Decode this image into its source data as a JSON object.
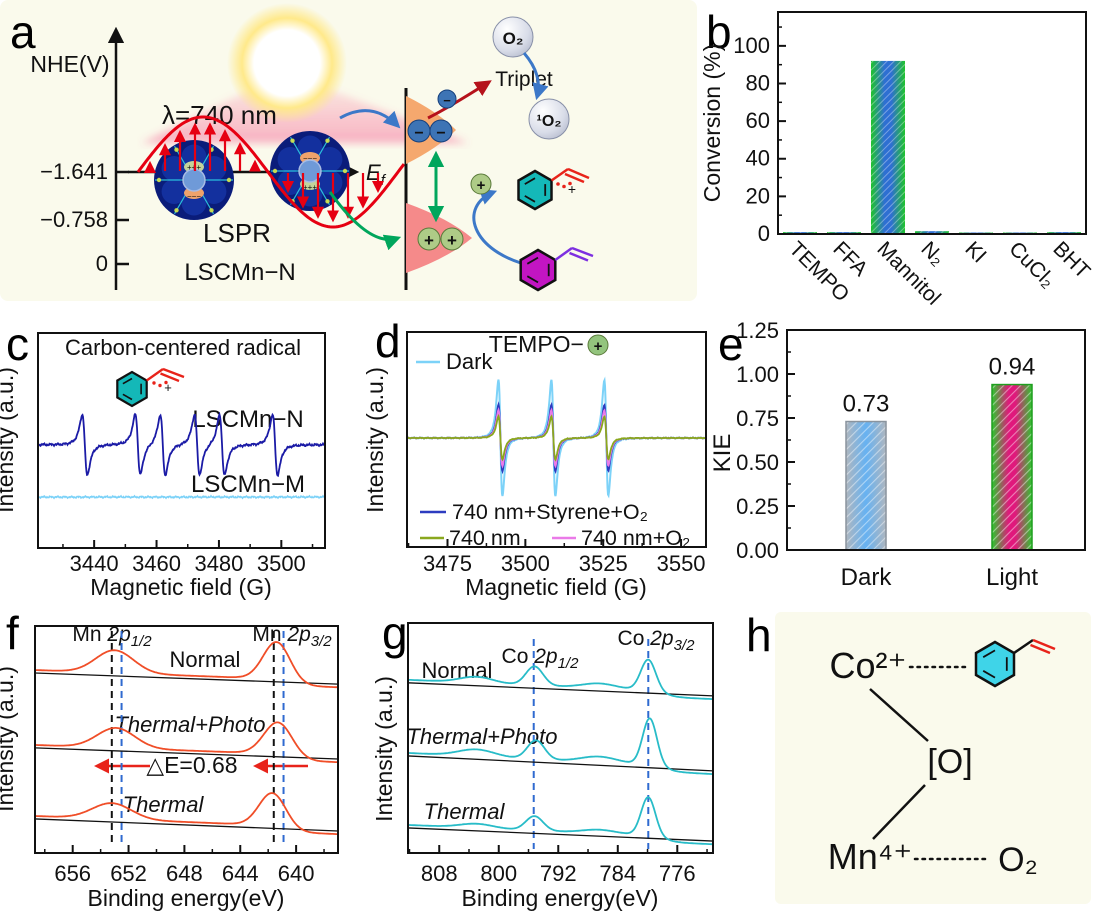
{
  "panels": {
    "a": {
      "letter": "a",
      "y_axis_label": "NHE(V)",
      "y_tick_labels": [
        "−1.641",
        "−0.758",
        "0"
      ],
      "wavelength_label": "λ=740 nm",
      "lspr_label": "LSPR",
      "material_label": "LSCMn−N",
      "fermi_symbol": "E",
      "fermi_sub": "f",
      "oxygen_label": "O₂",
      "triplet_label": "Triplet",
      "singlet_oxygen_label": "¹O₂",
      "electron_symbol": "−",
      "hole_symbol": "+",
      "charge_plus": "+++",
      "charge_minus": "−−−"
    },
    "b": {
      "letter": "b"
    },
    "c": {
      "letter": "c"
    },
    "d": {
      "letter": "d"
    },
    "e": {
      "letter": "e"
    },
    "f": {
      "letter": "f"
    },
    "g": {
      "letter": "g"
    },
    "h": {
      "letter": "h",
      "cobalt_label": "Co²⁺",
      "oxo_label": "[O]",
      "manganese_label": "Mn⁴⁺",
      "oxygen_label": "O₂"
    }
  },
  "colors": {
    "panel_background": "#fafaec",
    "wave_red": "#e60012",
    "magenta_accent": "#ef1285",
    "blue_arrow": "#3c78c8",
    "green_arrow": "#00a65c",
    "dark_red_arrow": "#b5121b",
    "teal_molecule": "#14b8b8",
    "magenta_molecule": "#c215c2",
    "cyan_molecule": "#3fd4e8"
  },
  "chart_data": [
    {
      "panel": "b",
      "type": "bar",
      "categories": [
        "TEMPO",
        "FFA",
        "Mannitol",
        "N₂",
        "KI",
        "CuCl₂",
        "BHT"
      ],
      "values": [
        1,
        1,
        92,
        1.5,
        0.8,
        0.8,
        1
      ],
      "ylabel": "Conversion (%)",
      "yticks": [
        0,
        20,
        40,
        60,
        80,
        100
      ],
      "ylim": [
        0,
        118
      ],
      "bar_colors": {
        "edge": "#1fc32b",
        "center": "#2e6fd2"
      }
    },
    {
      "panel": "c",
      "type": "line",
      "title": "Carbon-centered radical",
      "xlabel": "Magnetic field (G)",
      "ylabel": "Intensity (a.u.)",
      "xticks": [
        3440,
        3460,
        3480,
        3500
      ],
      "xlim": [
        3422,
        3514
      ],
      "series": [
        {
          "name": "LSCMn−N",
          "color": "#1b1ba6",
          "centers": [
            3437,
            3454,
            3462,
            3473,
            3481,
            3498
          ],
          "width": 1.4,
          "amp": 0.14,
          "baseline": 0.52,
          "noise": 1.1
        },
        {
          "name": "LSCMn−M",
          "color": "#7cd2f8",
          "centers": [],
          "width": 1,
          "amp": 0,
          "baseline": 0.763,
          "noise": 0.9
        }
      ]
    },
    {
      "panel": "d",
      "type": "line",
      "title": "TEMPO−",
      "title_suffix_symbol": "+",
      "xlabel": "Magnetic field (G)",
      "ylabel": "Intensity (a.u.)",
      "xticks": [
        3475,
        3500,
        3525,
        3550
      ],
      "xlim": [
        3462,
        3558
      ],
      "series": [
        {
          "name": "Dark",
          "color": "#7cd2f8",
          "centers": [
            3492,
            3509,
            3526
          ],
          "width": 1.1,
          "amp": 0.27,
          "baseline": 0.493,
          "noise": 0.5
        },
        {
          "name": "740 nm+Styrene+O₂",
          "color": "#2d3cc0",
          "centers": [
            3492,
            3509,
            3526
          ],
          "width": 1.1,
          "amp": 0.155,
          "baseline": 0.493,
          "noise": 0.4
        },
        {
          "name": "740 nm",
          "color": "#8aa81e",
          "centers": [
            3492,
            3509,
            3526
          ],
          "width": 1.1,
          "amp": 0.1,
          "baseline": 0.493,
          "noise": 0.4
        },
        {
          "name": "740 nm+O₂",
          "color": "#ea7ae8",
          "centers": [
            3492,
            3509,
            3526
          ],
          "width": 1.1,
          "amp": 0.13,
          "baseline": 0.493,
          "noise": 0.4
        }
      ]
    },
    {
      "panel": "e",
      "type": "bar",
      "categories": [
        "Dark",
        "Light"
      ],
      "values": [
        0.73,
        0.94
      ],
      "value_labels": [
        "0.73",
        "0.94"
      ],
      "ylabel": "KIE",
      "yticks": [
        0,
        0.25,
        0.5,
        0.75,
        1.0,
        1.25
      ],
      "ylim": [
        0,
        1.25
      ],
      "bar_colors": [
        {
          "edge": "#aeb6bf",
          "center": "#66b2f2"
        },
        {
          "edge": "#2ec52e",
          "center": "#e0187c"
        }
      ]
    },
    {
      "panel": "f",
      "type": "line",
      "xlabel": "Binding energy(eV)",
      "ylabel": "Intensity (a.u.)",
      "xticks": [
        656,
        652,
        648,
        644,
        640
      ],
      "xlim": [
        658.7,
        637.0
      ],
      "annotation": "△E=0.68",
      "peak_labels": [
        {
          "element": "Mn ",
          "orbital": "2p",
          "sub": "1/2"
        },
        {
          "element": "Mn ",
          "orbital": "2p",
          "sub": "3/2"
        }
      ],
      "dashed_black": [
        653.2,
        641.6
      ],
      "dashed_blue": [
        652.5,
        640.9
      ],
      "series": [
        {
          "name": "Normal",
          "color": "#f04e28",
          "baseline": [
            0.207,
            0.256
          ],
          "peaks": [
            {
              "c": 653.0,
              "a": 0.1,
              "w": 1.35
            },
            {
              "c": 641.4,
              "a": 0.165,
              "w": 0.95
            }
          ]
        },
        {
          "name": "Thermal+Photo",
          "color": "#f04e28",
          "baseline": [
            0.537,
            0.586
          ],
          "peaks": [
            {
              "c": 652.9,
              "a": 0.088,
              "w": 1.35
            },
            {
              "c": 641.3,
              "a": 0.141,
              "w": 1.0
            }
          ]
        },
        {
          "name": "Thermal",
          "color": "#f04e28",
          "baseline": [
            0.85,
            0.903
          ],
          "peaks": [
            {
              "c": 653.2,
              "a": 0.07,
              "w": 1.4
            },
            {
              "c": 641.7,
              "a": 0.145,
              "w": 0.95
            }
          ]
        }
      ]
    },
    {
      "panel": "g",
      "type": "line",
      "xlabel": "Binding energy(eV)",
      "ylabel": "Intensity (a.u.)",
      "xticks": [
        808,
        800,
        792,
        784,
        776
      ],
      "xlim": [
        812.2,
        771.2
      ],
      "peak_labels": [
        {
          "element": "Co ",
          "orbital": "2p",
          "sub": "1/2"
        },
        {
          "element": "Co ",
          "orbital": "2p",
          "sub": "3/2"
        }
      ],
      "dashed_blue": [
        795.3,
        779.9
      ],
      "series": [
        {
          "name": "Normal",
          "color": "#28bcc8",
          "baseline": [
            0.26,
            0.317
          ],
          "peaks": [
            {
              "c": 803,
              "a": 0.026,
              "w": 2.2
            },
            {
              "c": 795.2,
              "a": 0.082,
              "w": 1.15
            },
            {
              "c": 786.5,
              "a": 0.02,
              "w": 2.2
            },
            {
              "c": 779.9,
              "a": 0.135,
              "w": 1.0
            }
          ]
        },
        {
          "name": "Thermal+Photo",
          "color": "#28bcc8",
          "baseline": [
            0.578,
            0.643
          ],
          "peaks": [
            {
              "c": 803,
              "a": 0.03,
              "w": 2.4
            },
            {
              "c": 795.0,
              "a": 0.082,
              "w": 1.15
            },
            {
              "c": 786.5,
              "a": 0.025,
              "w": 2.4
            },
            {
              "c": 779.7,
              "a": 0.204,
              "w": 0.95
            }
          ]
        },
        {
          "name": "Thermal",
          "color": "#28bcc8",
          "baseline": [
            0.891,
            0.948
          ],
          "peaks": [
            {
              "c": 803,
              "a": 0.018,
              "w": 2.2
            },
            {
              "c": 795.2,
              "a": 0.062,
              "w": 1.15
            },
            {
              "c": 786.5,
              "a": 0.015,
              "w": 2.2
            },
            {
              "c": 779.9,
              "a": 0.168,
              "w": 0.95
            }
          ]
        }
      ]
    }
  ]
}
